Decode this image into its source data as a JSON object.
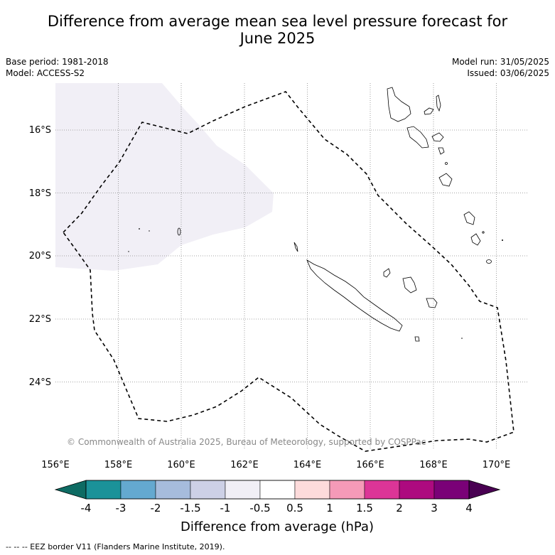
{
  "title_line1": "Difference from average mean sea level pressure forecast for",
  "title_line2": "June 2025",
  "base_period": "Base period: 1981-2018",
  "model": "Model: ACCESS-S2",
  "model_run": "Model run: 31/05/2025",
  "issued": "Issued: 03/06/2025",
  "copyright": "© Commonwealth of Australia 2025, Bureau of Meteorology, supported by COSPPac",
  "lon_labels": [
    "156°E",
    "158°E",
    "160°E",
    "162°E",
    "164°E",
    "166°E",
    "168°E",
    "170°E"
  ],
  "lat_labels": [
    "16°S",
    "18°S",
    "20°S",
    "22°S",
    "24°S"
  ],
  "colorbar": {
    "label": "Difference from average (hPa)",
    "ticks": [
      "-4",
      "-3",
      "-2",
      "-1.5",
      "-1",
      "-0.5",
      "0.5",
      "1",
      "1.5",
      "2",
      "3",
      "4"
    ],
    "colors": [
      "#0e6b63",
      "#1b9299",
      "#64a9d0",
      "#a6bcdc",
      "#cdd0e6",
      "#f1eff6",
      "#ffffff",
      "#fddbdb",
      "#f59ab8",
      "#dc3597",
      "#ad0a7f",
      "#7a0177",
      "#490152"
    ]
  },
  "footer": "--  --  -- EEZ border V11 (Flanders Marine Institute, 2019).",
  "colors": {
    "grid": "#888888",
    "anomaly_fill": "#f1eff6"
  }
}
